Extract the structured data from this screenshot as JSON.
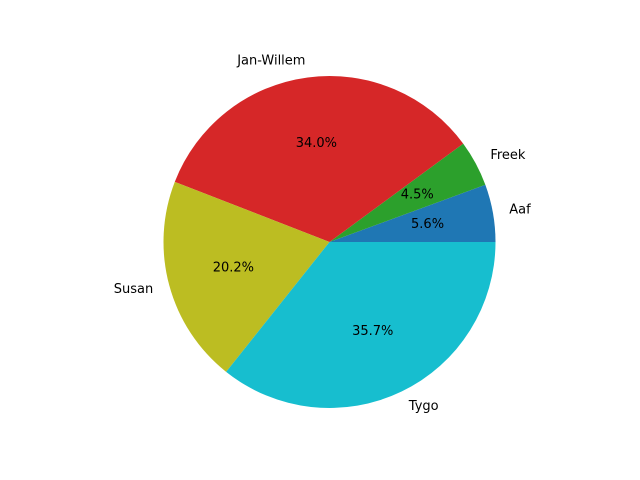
{
  "chart_data": {
    "type": "pie",
    "start_angle_deg": 0,
    "direction": "counterclockwise",
    "slices": [
      {
        "label": "Aaf",
        "value": 5.6,
        "color": "#1f77b4",
        "pct_label": "5.6%"
      },
      {
        "label": "Freek",
        "value": 4.5,
        "color": "#2ca02c",
        "pct_label": "4.5%"
      },
      {
        "label": "Jan-Willem",
        "value": 34.0,
        "color": "#d62728",
        "pct_label": "34.0%"
      },
      {
        "label": "Susan",
        "value": 20.2,
        "color": "#bcbd22",
        "pct_label": "20.2%"
      },
      {
        "label": "Tygo",
        "value": 35.7,
        "color": "#17becf",
        "pct_label": "35.7%"
      }
    ]
  }
}
